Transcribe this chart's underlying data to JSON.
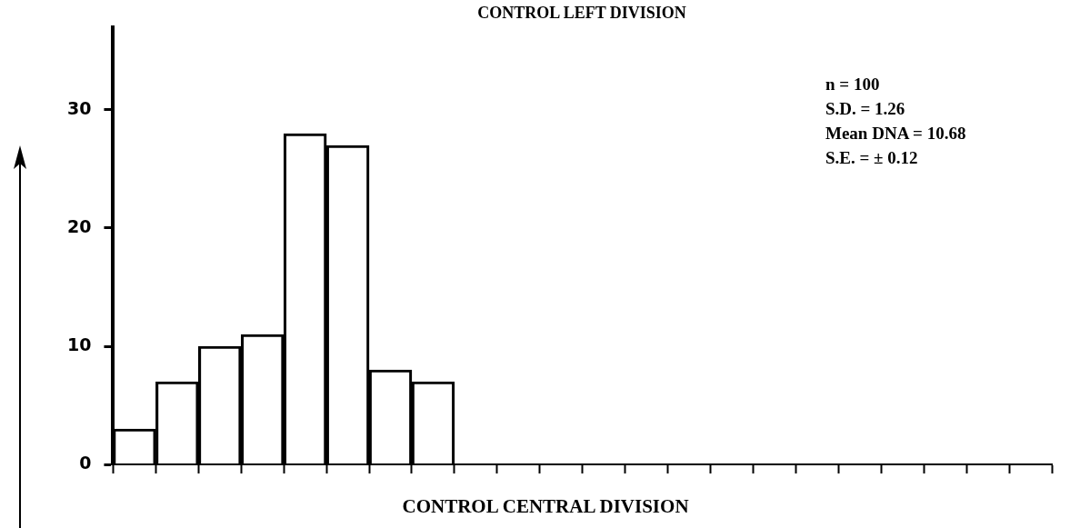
{
  "chart_data": {
    "type": "bar",
    "title": "CONTROL LEFT DIVISION",
    "categories": [
      null,
      null,
      null,
      null,
      null,
      null,
      null,
      null,
      null,
      null,
      null,
      null,
      null,
      null,
      null,
      null,
      null,
      null,
      null,
      null,
      null,
      null
    ],
    "values": [
      3,
      7,
      10,
      11,
      28,
      27,
      8,
      7,
      0,
      0,
      0,
      0,
      0,
      0,
      0,
      0,
      0,
      0,
      0,
      0,
      0,
      0
    ],
    "color": "#000000",
    "ylim": [
      0,
      37
    ],
    "yticks": [
      0,
      10,
      20,
      30
    ],
    "grid": false,
    "legend": false,
    "tick_labels": "y",
    "annotations": [
      "n = 100",
      "S.D. = 1.26",
      "Mean DNA = 10.68",
      "S.E. = ± 0.12",
      "CONTROL CENTRAL DIVISION"
    ]
  }
}
